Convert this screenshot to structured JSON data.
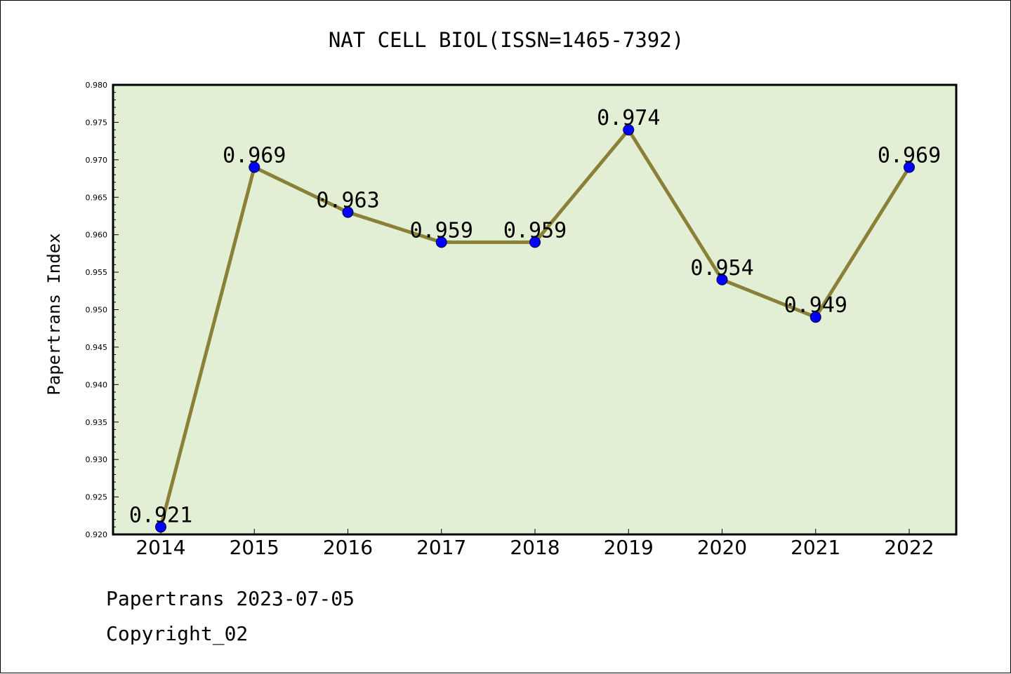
{
  "chart_data": {
    "type": "line",
    "title": "NAT CELL BIOL(ISSN=1465-7392)",
    "xlabel": "",
    "ylabel": "Papertrans Index",
    "categories": [
      "2014",
      "2015",
      "2016",
      "2017",
      "2018",
      "2019",
      "2020",
      "2021",
      "2022"
    ],
    "values": [
      0.921,
      0.969,
      0.963,
      0.959,
      0.959,
      0.974,
      0.954,
      0.949,
      0.969
    ],
    "data_labels": [
      "0.921",
      "0.969",
      "0.963",
      "0.959",
      "0.959",
      "0.974",
      "0.954",
      "0.949",
      "0.969"
    ],
    "ylim": [
      0.92,
      0.98
    ],
    "yticks": [
      "0.920",
      "0.925",
      "0.930",
      "0.935",
      "0.940",
      "0.945",
      "0.950",
      "0.955",
      "0.960",
      "0.965",
      "0.970",
      "0.975",
      "0.980"
    ],
    "grid": false,
    "colors": {
      "plot_background": "#e2efd5",
      "line": "#8b8038",
      "marker": "#0000ff"
    }
  },
  "footer": {
    "line1": "Papertrans 2023-07-05",
    "line2": "Copyright_02"
  }
}
